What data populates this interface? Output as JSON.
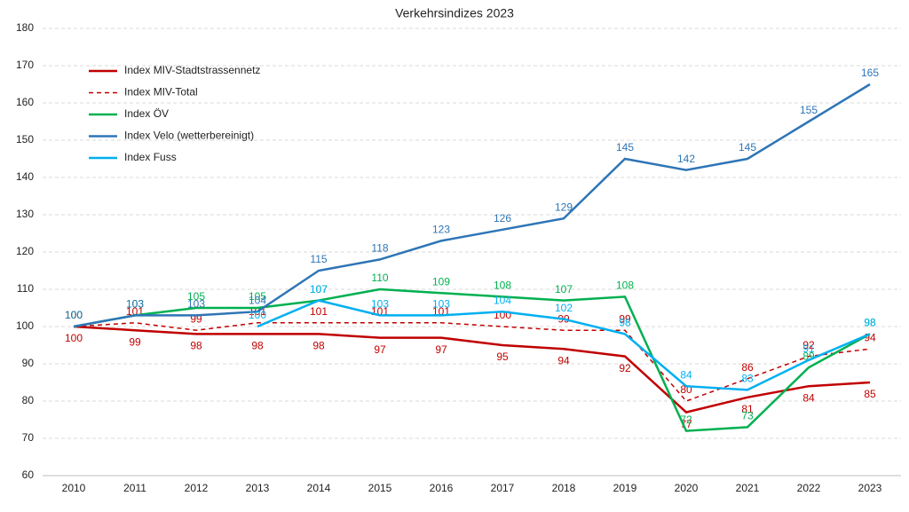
{
  "chart_data": {
    "type": "line",
    "title": "Verkehrsindizes 2023",
    "categories": [
      "2010",
      "2011",
      "2012",
      "2013",
      "2014",
      "2015",
      "2016",
      "2017",
      "2018",
      "2019",
      "2020",
      "2021",
      "2022",
      "2023"
    ],
    "ylim": [
      60,
      180
    ],
    "yticks": [
      60,
      70,
      80,
      90,
      100,
      110,
      120,
      130,
      140,
      150,
      160,
      170,
      180
    ],
    "grid": true,
    "legend": "upper-left",
    "series": [
      {
        "name": "Index MIV-Stadtstrassennetz",
        "color": "#c00000",
        "linestyle": "solid",
        "label_position": "below",
        "values": [
          100,
          99,
          98,
          98,
          98,
          97,
          97,
          95,
          94,
          92,
          77,
          81,
          84,
          85
        ]
      },
      {
        "name": "Index MIV-Total",
        "color": "#c00000",
        "linestyle": "dashed",
        "label_position": "above",
        "values": [
          100,
          101,
          99,
          101,
          101,
          101,
          101,
          100,
          99,
          99,
          80,
          86,
          92,
          94
        ]
      },
      {
        "name": "Index ÖV",
        "color": "#00b050",
        "linestyle": "solid",
        "label_position": "above",
        "values": [
          100,
          103,
          105,
          105,
          107,
          110,
          109,
          108,
          107,
          108,
          72,
          73,
          89,
          98
        ]
      },
      {
        "name": "Index Velo (wetterbereinigt)",
        "color": "#2e75b6",
        "linestyle": "solid",
        "label_position": "above",
        "values": [
          100,
          103,
          103,
          104,
          115,
          118,
          123,
          126,
          129,
          145,
          142,
          145,
          155,
          165
        ]
      },
      {
        "name": "Index Fuss",
        "color": "#00b0f0",
        "linestyle": "solid",
        "label_position": "above",
        "values": [
          null,
          null,
          null,
          100,
          107,
          103,
          103,
          104,
          102,
          98,
          84,
          83,
          91,
          98
        ]
      }
    ]
  }
}
